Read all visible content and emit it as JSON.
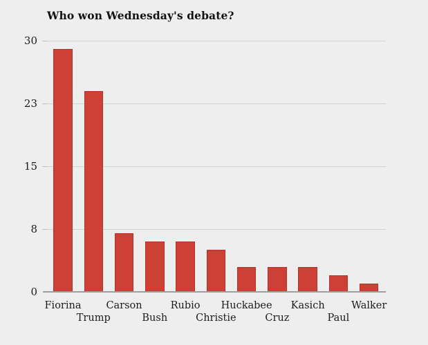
{
  "page": {
    "background_color": "#eeeeee"
  },
  "chart_data": {
    "type": "bar",
    "title": "Who won Wednesday's debate?",
    "categories": [
      "Fiorina",
      "Trump",
      "Carson",
      "Bush",
      "Rubio",
      "Christie",
      "Huckabee",
      "Cruz",
      "Kasich",
      "Paul",
      "Walker"
    ],
    "values": [
      29,
      24,
      7,
      6,
      6,
      5,
      3,
      3,
      3,
      2,
      1
    ],
    "xlabel": "",
    "ylabel": "",
    "ylim": [
      0,
      30
    ],
    "yticks": [
      {
        "pos": 0,
        "label": "0"
      },
      {
        "pos": 7.5,
        "label": "8"
      },
      {
        "pos": 15,
        "label": "15"
      },
      {
        "pos": 22.5,
        "label": "23"
      },
      {
        "pos": 30,
        "label": "30"
      }
    ],
    "grid": true,
    "legend": "none",
    "label_rows": "staggered",
    "colors": {
      "bar_fill": "#cc4035",
      "bar_edge": "#b53227",
      "gridline": "#d2d2d2",
      "tick_mark": "#bdbdbd",
      "axis_line": "#9e9e9e",
      "text": "#1b1b1b",
      "title_text": "#121212",
      "background": "#eeeeee"
    }
  }
}
